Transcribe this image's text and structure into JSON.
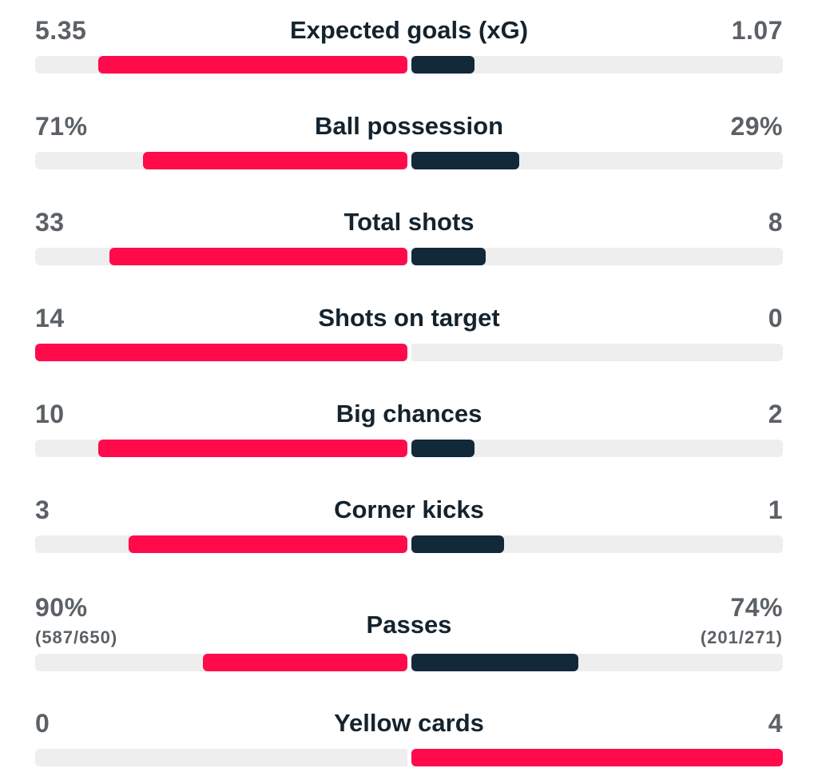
{
  "colors": {
    "home_bar": "#ff0a4b",
    "away_bar": "#12293a",
    "track": "#eeeeee",
    "value_text": "#5b6166",
    "label_text": "#14232e"
  },
  "stats": [
    {
      "label": "Expected goals (xG)",
      "home": "5.35",
      "away": "1.07",
      "home_fraction": 0.83,
      "away_fraction": 0.17,
      "home_color": "home",
      "away_color": "away"
    },
    {
      "label": "Ball possession",
      "home": "71%",
      "away": "29%",
      "home_fraction": 0.71,
      "away_fraction": 0.29,
      "home_color": "home",
      "away_color": "away"
    },
    {
      "label": "Total shots",
      "home": "33",
      "away": "8",
      "home_fraction": 0.8,
      "away_fraction": 0.2,
      "home_color": "home",
      "away_color": "away"
    },
    {
      "label": "Shots on target",
      "home": "14",
      "away": "0",
      "home_fraction": 1.0,
      "away_fraction": 0.0,
      "home_color": "home",
      "away_color": "away"
    },
    {
      "label": "Big chances",
      "home": "10",
      "away": "2",
      "home_fraction": 0.83,
      "away_fraction": 0.17,
      "home_color": "home",
      "away_color": "away"
    },
    {
      "label": "Corner kicks",
      "home": "3",
      "away": "1",
      "home_fraction": 0.75,
      "away_fraction": 0.25,
      "home_color": "home",
      "away_color": "away"
    },
    {
      "label": "Passes",
      "home": "90%",
      "away": "74%",
      "home_detail": "(587/650)",
      "away_detail": "(201/271)",
      "home_fraction": 0.55,
      "away_fraction": 0.45,
      "home_color": "home",
      "away_color": "away"
    },
    {
      "label": "Yellow cards",
      "home": "0",
      "away": "4",
      "home_fraction": 0.0,
      "away_fraction": 1.0,
      "home_color": "away",
      "away_color": "home"
    }
  ]
}
